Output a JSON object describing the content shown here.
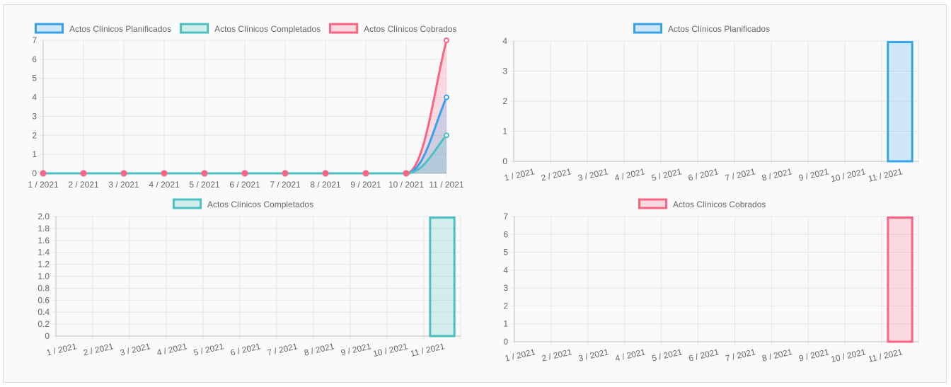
{
  "colors": {
    "blue": "#36a2eb",
    "teal": "#4bc0c0",
    "pink": "#ff6384",
    "blue_fill": "rgba(54,162,235,0.22)",
    "teal_fill": "rgba(75,192,192,0.22)",
    "pink_fill": "rgba(255,99,132,0.22)"
  },
  "chart_data": [
    {
      "id": "combined",
      "type": "line",
      "categories": [
        "1 / 2021",
        "2 / 2021",
        "3 / 2021",
        "4 / 2021",
        "5 / 2021",
        "6 / 2021",
        "7 / 2021",
        "8 / 2021",
        "9 / 2021",
        "10 / 2021",
        "11 / 2021"
      ],
      "series": [
        {
          "name": "Actos Clínicos Planificados",
          "color": "blue",
          "values": [
            0,
            0,
            0,
            0,
            0,
            0,
            0,
            0,
            0,
            0,
            4
          ]
        },
        {
          "name": "Actos Clínicos Completados",
          "color": "teal",
          "values": [
            0,
            0,
            0,
            0,
            0,
            0,
            0,
            0,
            0,
            0,
            2
          ]
        },
        {
          "name": "Actos Clínicos Cobrados",
          "color": "pink",
          "values": [
            0,
            0,
            0,
            0,
            0,
            0,
            0,
            0,
            0,
            0,
            7
          ]
        }
      ],
      "yticks": [
        "0",
        "1",
        "2",
        "3",
        "4",
        "5",
        "6",
        "7"
      ],
      "ylim": [
        0,
        7
      ],
      "grid": true,
      "legend": "top"
    },
    {
      "id": "planificados",
      "type": "bar",
      "categories": [
        "1 / 2021",
        "2 / 2021",
        "3 / 2021",
        "4 / 2021",
        "5 / 2021",
        "6 / 2021",
        "7 / 2021",
        "8 / 2021",
        "9 / 2021",
        "10 / 2021",
        "11 / 2021"
      ],
      "series": [
        {
          "name": "Actos Clínicos Planificados",
          "color": "blue",
          "values": [
            0,
            0,
            0,
            0,
            0,
            0,
            0,
            0,
            0,
            0,
            4
          ]
        }
      ],
      "yticks": [
        "0",
        "1",
        "2",
        "3",
        "4"
      ],
      "ylim": [
        0,
        4
      ],
      "grid": true,
      "legend": "top"
    },
    {
      "id": "completados",
      "type": "bar",
      "categories": [
        "1 / 2021",
        "2 / 2021",
        "3 / 2021",
        "4 / 2021",
        "5 / 2021",
        "6 / 2021",
        "7 / 2021",
        "8 / 2021",
        "9 / 2021",
        "10 / 2021",
        "11 / 2021"
      ],
      "series": [
        {
          "name": "Actos Clínicos Completados",
          "color": "teal",
          "values": [
            0,
            0,
            0,
            0,
            0,
            0,
            0,
            0,
            0,
            0,
            2
          ]
        }
      ],
      "yticks": [
        "0",
        "0.2",
        "0.4",
        "0.6",
        "0.8",
        "1.0",
        "1.2",
        "1.4",
        "1.6",
        "1.8",
        "2.0"
      ],
      "ylim": [
        0,
        2
      ],
      "grid": true,
      "legend": "top"
    },
    {
      "id": "cobrados",
      "type": "bar",
      "categories": [
        "1 / 2021",
        "2 / 2021",
        "3 / 2021",
        "4 / 2021",
        "5 / 2021",
        "6 / 2021",
        "7 / 2021",
        "8 / 2021",
        "9 / 2021",
        "10 / 2021",
        "11 / 2021"
      ],
      "series": [
        {
          "name": "Actos Clínicos Cobrados",
          "color": "pink",
          "values": [
            0,
            0,
            0,
            0,
            0,
            0,
            0,
            0,
            0,
            0,
            7
          ]
        }
      ],
      "yticks": [
        "0",
        "1",
        "2",
        "3",
        "4",
        "5",
        "6",
        "7"
      ],
      "ylim": [
        0,
        7
      ],
      "grid": true,
      "legend": "top"
    }
  ]
}
